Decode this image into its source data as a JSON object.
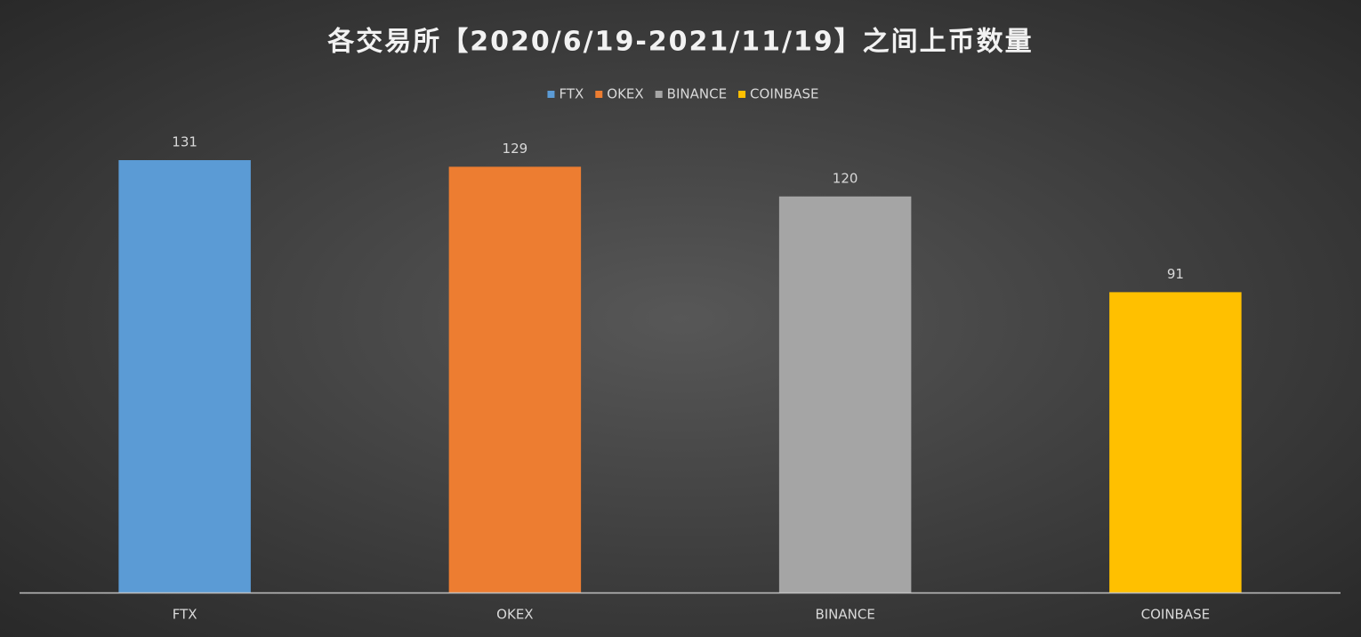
{
  "chart_data": {
    "type": "bar",
    "title": "各交易所【2020/6/19-2021/11/19】之间上币数量",
    "categories": [
      "FTX",
      "OKEX",
      "BINANCE",
      "COINBASE"
    ],
    "values": [
      131,
      129,
      120,
      91
    ],
    "colors": [
      "#5b9bd5",
      "#ed7d31",
      "#a5a5a5",
      "#ffc000"
    ],
    "legend": "top",
    "grid": false
  }
}
